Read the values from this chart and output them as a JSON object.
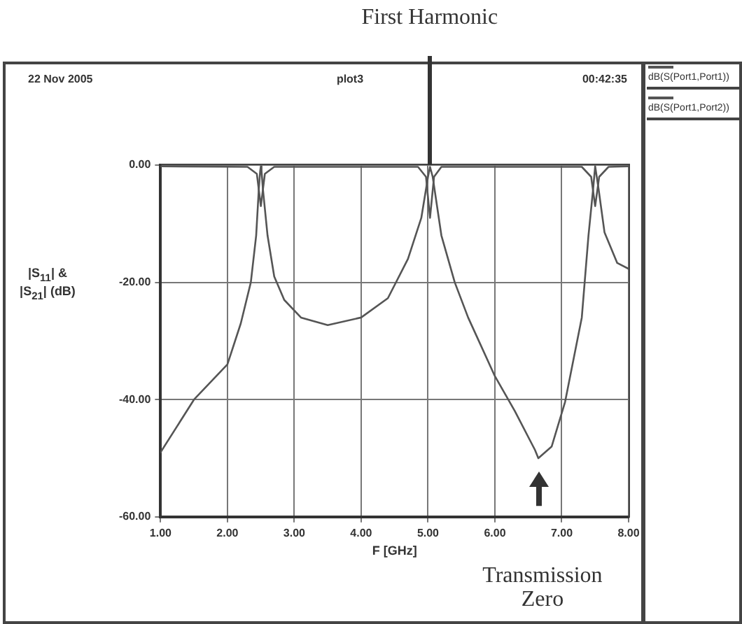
{
  "chart_data": {
    "type": "line",
    "annotations": [
      "22 Nov 2005",
      "plot3",
      "00:42:35",
      "First Harmonic",
      "Transmission Zero"
    ],
    "xlabel": "F [GHz]",
    "ylabel": "|S$_{11}$| & |S$_{21}$| (dB)",
    "xlim": [
      1,
      8
    ],
    "xticks": [
      {
        "value": 1,
        "label": "1.00"
      },
      {
        "value": 2,
        "label": "2.00"
      },
      {
        "value": 3,
        "label": "3.00"
      },
      {
        "value": 4,
        "label": "4.00"
      },
      {
        "value": 5,
        "label": "5.00"
      },
      {
        "value": 6,
        "label": "6.00"
      },
      {
        "value": 7,
        "label": "7.00"
      },
      {
        "value": 8,
        "label": "8.00"
      }
    ],
    "ylim": [
      -60,
      0
    ],
    "yticks": [
      {
        "value": -60,
        "label": "-60.00"
      },
      {
        "value": -40,
        "label": "-40.00"
      },
      {
        "value": -20,
        "label": "-20.00"
      },
      {
        "value": 0,
        "label": "0.00"
      }
    ],
    "grid": true,
    "legend": "right",
    "marker": "none",
    "series": [
      {
        "name": "dB(S(Port1,Port1))",
        "color": "#555555",
        "x": [
          1,
          2.3,
          2.44,
          2.5,
          2.56,
          2.7,
          4.85,
          4.97,
          5.03,
          5.09,
          5.2,
          7.3,
          7.44,
          7.5,
          7.56,
          7.7,
          8
        ],
        "values": [
          -0.2,
          -0.3,
          -1.5,
          -7,
          -1.5,
          -0.3,
          -0.3,
          -2,
          -9,
          -2,
          -0.3,
          -0.3,
          -2,
          -7,
          -2,
          -0.3,
          -0.2
        ]
      },
      {
        "name": "dB(S(Port1,Port2))",
        "color": "#555555",
        "x": [
          1,
          1.5,
          2,
          2.2,
          2.35,
          2.43,
          2.47,
          2.49,
          2.5,
          2.51,
          2.53,
          2.6,
          2.7,
          2.85,
          3.1,
          3.5,
          4,
          4.4,
          4.7,
          4.9,
          5,
          5.03,
          5.07,
          5.2,
          5.4,
          5.6,
          6,
          6.3,
          6.6,
          6.65,
          6.85,
          7.05,
          7.3,
          7.4,
          7.47,
          7.5,
          7.55,
          7.64,
          7.83,
          8
        ],
        "values": [
          -49,
          -40,
          -34,
          -27,
          -20,
          -12,
          -4,
          -1,
          -0.2,
          -1,
          -4,
          -12,
          -19,
          -23,
          -26,
          -27.3,
          -26,
          -22.7,
          -16,
          -9,
          -2,
          -0.3,
          -2,
          -12,
          -20,
          -26,
          -36,
          -42,
          -48.6,
          -50,
          -48,
          -40.4,
          -26,
          -12,
          -4,
          -0.2,
          -4,
          -11.5,
          -16.7,
          -17.7
        ]
      }
    ]
  }
}
